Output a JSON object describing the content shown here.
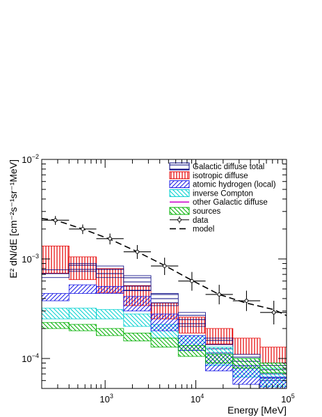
{
  "chart_data": {
    "type": "scatter",
    "title": "",
    "xlabel": "Energy [MeV]",
    "ylabel": "E² dN/dE [cm⁻²s⁻¹sr⁻¹MeV]",
    "xscale": "log",
    "yscale": "log",
    "xlim": [
      200,
      100000
    ],
    "ylim": [
      5e-05,
      0.01
    ],
    "x_ticks": [
      {
        "value": 1000,
        "base": "10",
        "exp": "3"
      },
      {
        "value": 10000,
        "base": "10",
        "exp": "4"
      },
      {
        "value": 100000,
        "base": "10",
        "exp": "5"
      }
    ],
    "y_ticks": [
      {
        "value": 0.0001,
        "base": "10",
        "exp": "−4"
      },
      {
        "value": 0.001,
        "base": "10",
        "exp": "−3"
      },
      {
        "value": 0.01,
        "base": "10",
        "exp": "−2"
      }
    ],
    "grid": false,
    "legend_position": "top-right",
    "bin_edges": [
      200,
      400,
      800,
      1600,
      3200,
      6400,
      12800,
      25600,
      51200,
      100000
    ],
    "series": [
      {
        "name": "Galactic diffuse total",
        "kind": "band",
        "color": "#00007f",
        "hatch": "horizontal",
        "lower": [
          0.00065,
          0.00075,
          0.00065,
          0.00048,
          0.00034,
          0.00021,
          0.00011,
          8e-05,
          6e-05
        ],
        "upper": [
          0.00078,
          0.0009,
          0.00085,
          0.00068,
          0.00045,
          0.00029,
          0.00016,
          0.00011,
          9e-05
        ]
      },
      {
        "name": "isotropic diffuse",
        "kind": "band",
        "color": "#e60000",
        "hatch": "vertical",
        "lower": [
          0.00072,
          0.00062,
          0.00046,
          0.00034,
          0.00025,
          0.00018,
          0.00014,
          0.00011,
          9e-05
        ],
        "upper": [
          0.00135,
          0.00105,
          0.0008,
          0.00054,
          0.00036,
          0.00026,
          0.0002,
          0.00016,
          0.00013
        ]
      },
      {
        "name": "atomic hydrogen (local)",
        "kind": "band",
        "color": "#1a1ae6",
        "hatch": "diagonal-right",
        "lower": [
          0.00038,
          0.00045,
          0.00045,
          0.0003,
          0.00019,
          0.00012,
          7.5e-05,
          5.5e-05,
          4.5e-05
        ],
        "upper": [
          0.00045,
          0.00055,
          0.00053,
          0.00042,
          0.00028,
          0.00017,
          0.00011,
          8.5e-05,
          6.5e-05
        ]
      },
      {
        "name": "inverse Compton",
        "kind": "band",
        "color": "#00d0d0",
        "hatch": "diagonal-left",
        "lower": [
          0.00025,
          0.00025,
          0.00025,
          0.00021,
          0.00016,
          0.00012,
          8.5e-05,
          6.5e-05,
          5.2e-05
        ],
        "upper": [
          0.00032,
          0.00032,
          0.00031,
          0.00028,
          0.00022,
          0.00017,
          0.00013,
          0.0001,
          8e-05
        ]
      },
      {
        "name": "other Galactic diffuse",
        "kind": "line",
        "color": "#cc00cc",
        "x": [],
        "y": []
      },
      {
        "name": "sources",
        "kind": "band",
        "color": "#00b000",
        "hatch": "diagonal-left",
        "lower": [
          0.0002,
          0.00019,
          0.00017,
          0.00015,
          0.00013,
          0.000105,
          9e-05,
          8e-05,
          7.2e-05
        ],
        "upper": [
          0.00023,
          0.00022,
          0.0002,
          0.00018,
          0.00016,
          0.000135,
          0.00011,
          0.0001,
          9e-05
        ]
      },
      {
        "name": "data",
        "kind": "points",
        "color": "#000000",
        "x": [
          283,
          566,
          1131,
          2263,
          4525,
          9051,
          18102,
          36204,
          72408
        ],
        "y": [
          0.00245,
          0.002,
          0.0016,
          0.00118,
          0.00085,
          0.0006,
          0.00044,
          0.00038,
          0.00029
        ],
        "xerr_low": [
          200,
          400,
          800,
          1600,
          3200,
          6400,
          12800,
          25600,
          51200
        ],
        "xerr_high": [
          400,
          800,
          1600,
          3200,
          6400,
          12800,
          25600,
          51200,
          100000
        ],
        "yerr_low": [
          0.0022,
          0.00178,
          0.0014,
          0.001,
          0.00069,
          0.00048,
          0.00035,
          0.0003,
          0.00022
        ],
        "yerr_high": [
          0.0027,
          0.00222,
          0.0018,
          0.00138,
          0.00103,
          0.00074,
          0.00055,
          0.00048,
          0.00038
        ]
      },
      {
        "name": "model",
        "kind": "dashed-line",
        "color": "#000000",
        "x": [
          200,
          283,
          566,
          1131,
          2263,
          4525,
          9051,
          18102,
          36204,
          72408,
          100000
        ],
        "y": [
          0.00255,
          0.00245,
          0.002,
          0.00158,
          0.00118,
          0.00086,
          0.00061,
          0.00044,
          0.00036,
          0.00031,
          0.00027
        ]
      }
    ]
  }
}
